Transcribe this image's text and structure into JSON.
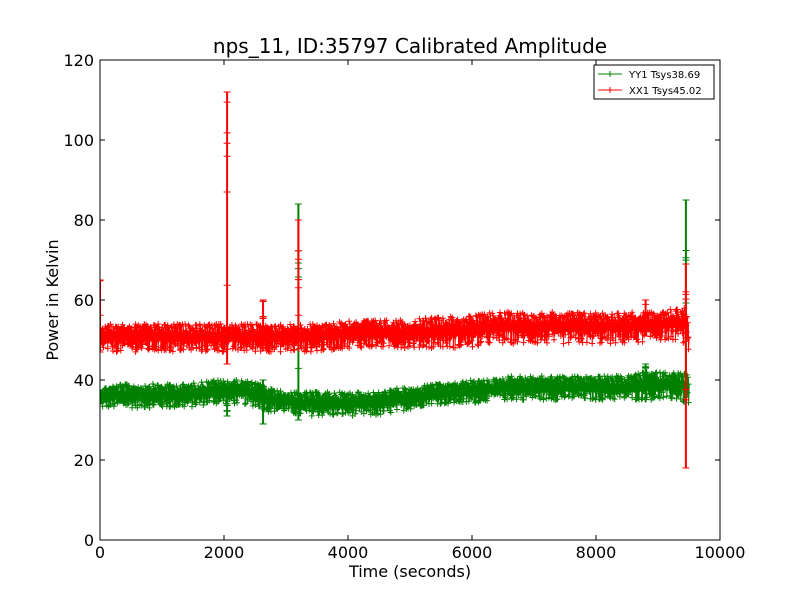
{
  "chart_data": {
    "type": "line",
    "title": "nps_11, ID:35797 Calibrated Amplitude",
    "xlabel": "Time (seconds)",
    "ylabel": "Power in Kelvin",
    "xlim": [
      0,
      10000
    ],
    "ylim": [
      0,
      120
    ],
    "xticks": [
      "0",
      "2000",
      "4000",
      "6000",
      "8000",
      "10000"
    ],
    "yticks": [
      "0",
      "20",
      "40",
      "60",
      "80",
      "100",
      "120"
    ],
    "grid": false,
    "legend_position": "top-right",
    "marker": "+",
    "series": [
      {
        "name": "YY1 Tsys38.69",
        "color": "#008000",
        "x": [
          0,
          300,
          600,
          1000,
          1400,
          1800,
          2050,
          2300,
          2600,
          2700,
          3000,
          3200,
          3500,
          4000,
          4500,
          4800,
          5100,
          5300,
          5600,
          6000,
          6300,
          6600,
          7000,
          7500,
          8000,
          8500,
          8800,
          9100,
          9300,
          9450,
          9500
        ],
        "y_low": [
          33,
          33,
          33,
          33,
          33,
          34,
          34,
          34,
          33,
          32,
          32,
          31,
          31,
          31,
          31,
          32,
          33,
          34,
          34,
          34,
          35,
          35,
          35,
          35,
          35,
          35,
          35,
          35,
          35,
          34,
          34
        ],
        "y_high": [
          38,
          39,
          39,
          39,
          39,
          40,
          40,
          40,
          39,
          38,
          37,
          37,
          37,
          37,
          37,
          38,
          38,
          39,
          39,
          40,
          40,
          41,
          41,
          41,
          41,
          41,
          42,
          42,
          42,
          42,
          40
        ],
        "spikes": [
          {
            "x": 2050,
            "min": 31,
            "max": 38
          },
          {
            "x": 2630,
            "min": 29,
            "max": 40
          },
          {
            "x": 3200,
            "min": 30,
            "max": 84
          },
          {
            "x": 8800,
            "min": 38,
            "max": 44
          },
          {
            "x": 9450,
            "min": 35,
            "max": 85
          }
        ]
      },
      {
        "name": "XX1 Tsys45.02",
        "color": "#ff0000",
        "x": [
          0,
          300,
          600,
          1000,
          1400,
          1800,
          2050,
          2300,
          2600,
          3000,
          3500,
          4000,
          4500,
          5000,
          5500,
          6000,
          6300,
          6600,
          7000,
          7500,
          8000,
          8500,
          9000,
          9300,
          9450,
          9500
        ],
        "y_low": [
          47,
          47,
          47,
          47,
          47,
          47,
          47,
          47,
          47,
          47,
          47,
          48,
          48,
          48,
          48,
          48,
          49,
          49,
          49,
          49,
          49,
          49,
          50,
          50,
          49,
          45
        ],
        "y_high": [
          54,
          54,
          54,
          54,
          54,
          54,
          54,
          54,
          54,
          54,
          54,
          55,
          55,
          55,
          56,
          56,
          57,
          57,
          57,
          57,
          57,
          57,
          57,
          58,
          58,
          52
        ],
        "spikes": [
          {
            "x": 0,
            "min": 47,
            "max": 65
          },
          {
            "x": 2050,
            "min": 44,
            "max": 112
          },
          {
            "x": 2630,
            "min": 50,
            "max": 60
          },
          {
            "x": 3200,
            "min": 49,
            "max": 80
          },
          {
            "x": 8800,
            "min": 51,
            "max": 60
          },
          {
            "x": 9450,
            "min": 18,
            "max": 69
          }
        ]
      }
    ]
  }
}
